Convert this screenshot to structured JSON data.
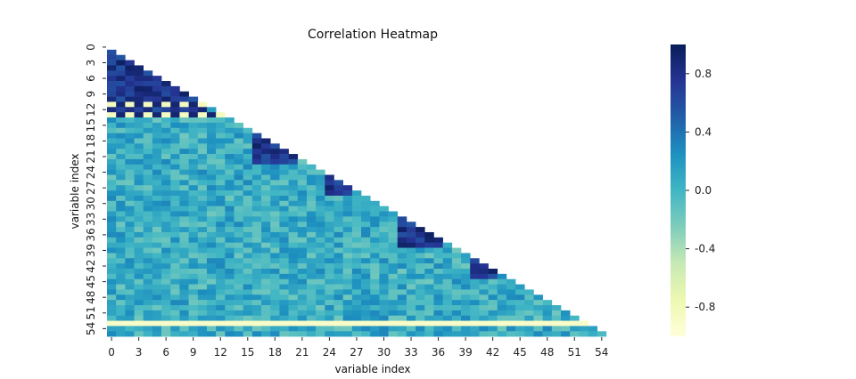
{
  "chart_data": {
    "type": "heatmap",
    "title": "Correlation Heatmap",
    "xlabel": "variable index",
    "ylabel": "variable index",
    "n": 56,
    "mask": "upper triangle (j > i) and diagonal hidden",
    "x_tick_labels": [
      "0",
      "3",
      "6",
      "9",
      "12",
      "15",
      "18",
      "21",
      "24",
      "27",
      "30",
      "33",
      "36",
      "39",
      "42",
      "45",
      "48",
      "51",
      "54"
    ],
    "y_tick_labels": [
      "0",
      "3",
      "6",
      "9",
      "12",
      "15",
      "18",
      "21",
      "24",
      "27",
      "30",
      "33",
      "36",
      "39",
      "42",
      "45",
      "48",
      "51",
      "54"
    ],
    "colormap": "YlGnBu",
    "vmin": -1.0,
    "vmax": 1.0,
    "colorbar_ticks": [
      "0.8",
      "0.4",
      "0.0",
      "-0.4",
      "-0.8"
    ],
    "colorbar_tick_values": [
      0.8,
      0.4,
      0.0,
      -0.4,
      -0.8
    ],
    "colors": {
      "stop_0": "#ffffd9",
      "stop_1": "#edf8b1",
      "stop_2": "#c7e9b4",
      "stop_3": "#7fcdbb",
      "stop_4": "#41b6c4",
      "stop_5": "#1d91c0",
      "stop_6": "#225ea8",
      "stop_7": "#253494",
      "stop_8": "#081d58"
    },
    "values_note": "lower-triangle correlation values approximated from colours (seed 42 pattern)"
  }
}
